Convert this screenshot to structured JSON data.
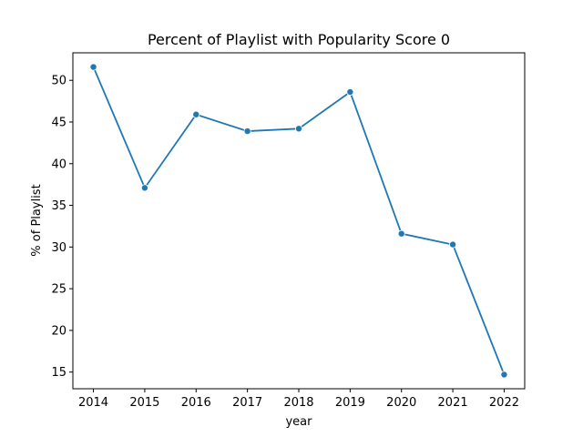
{
  "chart_data": {
    "type": "line",
    "title": "Percent of Playlist with Popularity Score 0",
    "xlabel": "year",
    "ylabel": "% of Playlist",
    "x": [
      "2014",
      "2015",
      "2016",
      "2017",
      "2018",
      "2019",
      "2020",
      "2021",
      "2022"
    ],
    "series": [
      {
        "values": [
          51.6,
          37.1,
          45.9,
          43.9,
          44.2,
          48.6,
          31.6,
          30.3,
          14.7
        ]
      }
    ],
    "xlim": [
      2013.6,
      2022.4
    ],
    "ylim": [
      13.0,
      53.3
    ],
    "yticks": [
      15,
      20,
      25,
      30,
      35,
      40,
      45,
      50
    ],
    "grid": false,
    "legend": "none",
    "marker": "circle",
    "line_color": "#1f77b4"
  }
}
